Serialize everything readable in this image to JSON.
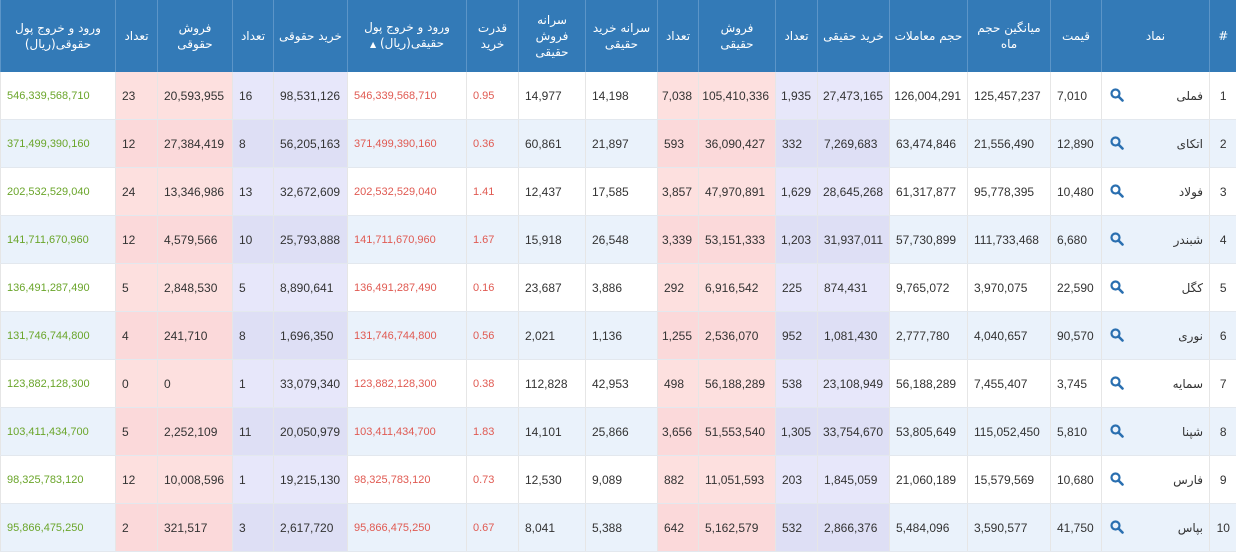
{
  "colors": {
    "header_bg": "#337ab7",
    "negative_text": "#e05a52",
    "positive_text": "#6aa52a",
    "sell_highlight": "#fde0df",
    "buy_highlight": "#e7e7fa",
    "alt_row": "#eaf2fb"
  },
  "columns": [
    {
      "key": "idx",
      "label": "#"
    },
    {
      "key": "symbol",
      "label": "نماد"
    },
    {
      "key": "price",
      "label": "قیمت"
    },
    {
      "key": "avg_month_vol",
      "label": "میانگین حجم ماه"
    },
    {
      "key": "volume",
      "label": "حجم معاملات"
    },
    {
      "key": "ind_buy",
      "label": "خرید حقیقی"
    },
    {
      "key": "ind_buy_count",
      "label": "تعداد"
    },
    {
      "key": "ind_sell",
      "label": "فروش حقیقی"
    },
    {
      "key": "ind_sell_count",
      "label": "تعداد"
    },
    {
      "key": "per_buy",
      "label": "سرانه خرید حقیقی"
    },
    {
      "key": "per_sell",
      "label": "سرانه فروش حقیقی"
    },
    {
      "key": "buy_power",
      "label": "قدرت خرید"
    },
    {
      "key": "ind_flow",
      "label": "ورود و خروج پول حقیقی(ریال)",
      "sort_indicator": "▲"
    },
    {
      "key": "leg_buy",
      "label": "خرید حقوقی"
    },
    {
      "key": "leg_buy_count",
      "label": "تعداد"
    },
    {
      "key": "leg_sell",
      "label": "فروش حقوقی"
    },
    {
      "key": "leg_sell_count",
      "label": "تعداد"
    },
    {
      "key": "leg_flow",
      "label": "ورود و خروج پول حقوقی(ریال)"
    }
  ],
  "row_icon": "search-icon",
  "rows": [
    [
      "1",
      "فملی",
      "7,010",
      "125,457,237",
      "126,004,291",
      "27,473,165",
      "1,935",
      "105,410,336",
      "7,038",
      "14,198",
      "14,977",
      "0.95",
      "546,339,568,710",
      "98,531,126",
      "16",
      "20,593,955",
      "23",
      "546,339,568,710"
    ],
    [
      "2",
      "اتکای",
      "12,890",
      "21,556,490",
      "63,474,846",
      "7,269,683",
      "332",
      "36,090,427",
      "593",
      "21,897",
      "60,861",
      "0.36",
      "371,499,390,160",
      "56,205,163",
      "8",
      "27,384,419",
      "12",
      "371,499,390,160"
    ],
    [
      "3",
      "فولاد",
      "10,480",
      "95,778,395",
      "61,317,877",
      "28,645,268",
      "1,629",
      "47,970,891",
      "3,857",
      "17,585",
      "12,437",
      "1.41",
      "202,532,529,040",
      "32,672,609",
      "13",
      "13,346,986",
      "24",
      "202,532,529,040"
    ],
    [
      "4",
      "شبندر",
      "6,680",
      "111,733,468",
      "57,730,899",
      "31,937,011",
      "1,203",
      "53,151,333",
      "3,339",
      "26,548",
      "15,918",
      "1.67",
      "141,711,670,960",
      "25,793,888",
      "10",
      "4,579,566",
      "12",
      "141,711,670,960"
    ],
    [
      "5",
      "کگل",
      "22,590",
      "3,970,075",
      "9,765,072",
      "874,431",
      "225",
      "6,916,542",
      "292",
      "3,886",
      "23,687",
      "0.16",
      "136,491,287,490",
      "8,890,641",
      "5",
      "2,848,530",
      "5",
      "136,491,287,490"
    ],
    [
      "6",
      "نوری",
      "90,570",
      "4,040,657",
      "2,777,780",
      "1,081,430",
      "952",
      "2,536,070",
      "1,255",
      "1,136",
      "2,021",
      "0.56",
      "131,746,744,800",
      "1,696,350",
      "8",
      "241,710",
      "4",
      "131,746,744,800"
    ],
    [
      "7",
      "سمایه",
      "3,745",
      "7,455,407",
      "56,188,289",
      "23,108,949",
      "538",
      "56,188,289",
      "498",
      "42,953",
      "112,828",
      "0.38",
      "123,882,128,300",
      "33,079,340",
      "1",
      "0",
      "0",
      "123,882,128,300"
    ],
    [
      "8",
      "شپنا",
      "5,810",
      "115,052,450",
      "53,805,649",
      "33,754,670",
      "1,305",
      "51,553,540",
      "3,656",
      "25,866",
      "14,101",
      "1.83",
      "103,411,434,700",
      "20,050,979",
      "11",
      "2,252,109",
      "5",
      "103,411,434,700"
    ],
    [
      "9",
      "فارس",
      "10,680",
      "15,579,569",
      "21,060,189",
      "1,845,059",
      "203",
      "11,051,593",
      "882",
      "9,089",
      "12,530",
      "0.73",
      "98,325,783,120",
      "19,215,130",
      "1",
      "10,008,596",
      "12",
      "98,325,783,120"
    ],
    [
      "10",
      "بپاس",
      "41,750",
      "3,590,577",
      "5,484,096",
      "2,866,376",
      "532",
      "5,162,579",
      "642",
      "5,388",
      "8,041",
      "0.67",
      "95,866,475,250",
      "2,617,720",
      "3",
      "321,517",
      "2",
      "95,866,475,250"
    ]
  ]
}
